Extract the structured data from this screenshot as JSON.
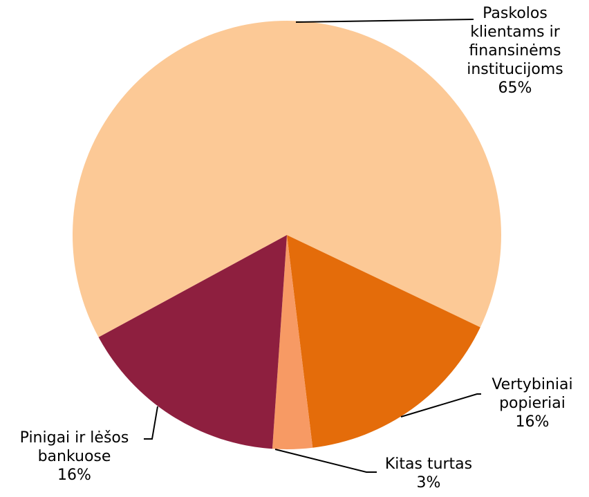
{
  "chart_data": {
    "type": "pie",
    "categories": [
      "Paskolos klientams ir finansinėms institucijoms",
      "Vertybiniai popieriai",
      "Kitas turtas",
      "Pinigai ir lėšos bankuose"
    ],
    "values": [
      65,
      16,
      3,
      16
    ],
    "value_labels": [
      "65%",
      "16%",
      "3%",
      "16%"
    ],
    "colors": [
      "#FCC996",
      "#E46C0A",
      "#F79A64",
      "#8E1F3F"
    ]
  }
}
